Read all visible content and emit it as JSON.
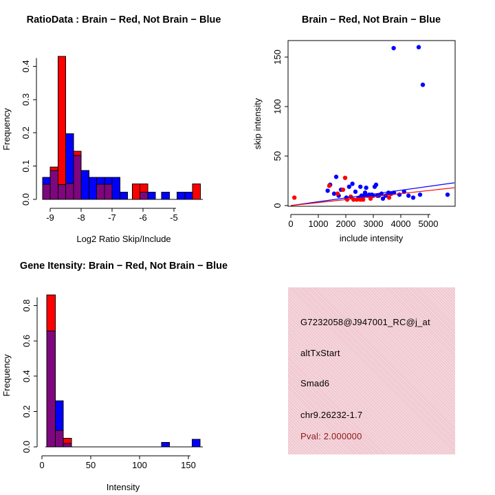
{
  "window": {
    "background": "#ffffff"
  },
  "colors": {
    "red": "#ff0000",
    "blue": "#0000ff",
    "overlap_purple": "#7e067e",
    "axis_black": "#000000",
    "info_panel_pink": "#f0c6cf",
    "pval_dark_red": "#8b1a1a"
  },
  "chart_data": [
    {
      "id": "ratio-histogram",
      "type": "bar",
      "subtype": "overlaid-histogram",
      "title": "RatioData : Brain − Red, Not Brain − Blue",
      "xlabel": "Log2 Ratio Skip/Include",
      "ylabel": "Frequency",
      "xlim": [
        -9.35,
        -4.1
      ],
      "ylim": [
        0,
        0.43
      ],
      "xticks": [
        -9,
        -8,
        -7,
        -6,
        -5
      ],
      "xtick_labels": [
        "-9",
        "-8",
        "-7",
        "-6",
        "-5"
      ],
      "yticks": [
        0,
        0.1,
        0.2,
        0.3,
        0.4
      ],
      "ytick_labels": [
        "0.0",
        "0.1",
        "0.2",
        "0.3",
        "0.4"
      ],
      "legend_note": "Brain = red, Not Brain = blue, overlap = purple",
      "grid": false,
      "bars": [
        {
          "x": -9.25,
          "w": 0.25,
          "red": 0.045,
          "blue": 0.066
        },
        {
          "x": -9.0,
          "w": 0.25,
          "red": 0.097,
          "blue": 0.087
        },
        {
          "x": -8.75,
          "w": 0.25,
          "red": 0.43,
          "blue": 0.044
        },
        {
          "x": -8.5,
          "w": 0.25,
          "red": 0.048,
          "blue": 0.197
        },
        {
          "x": -8.25,
          "w": 0.25,
          "red": 0.145,
          "blue": 0.132
        },
        {
          "x": -8.0,
          "w": 0.25,
          "red": 0,
          "blue": 0.087
        },
        {
          "x": -7.75,
          "w": 0.25,
          "red": 0,
          "blue": 0.066
        },
        {
          "x": -7.5,
          "w": 0.25,
          "red": 0.045,
          "blue": 0.066
        },
        {
          "x": -7.25,
          "w": 0.25,
          "red": 0.045,
          "blue": 0.066
        },
        {
          "x": -7.0,
          "w": 0.25,
          "red": 0,
          "blue": 0.066
        },
        {
          "x": -6.75,
          "w": 0.25,
          "red": 0,
          "blue": 0.022
        },
        {
          "x": -6.35,
          "w": 0.25,
          "red": 0.047,
          "blue": 0
        },
        {
          "x": -6.1,
          "w": 0.25,
          "red": 0.047,
          "blue": 0.022
        },
        {
          "x": -5.85,
          "w": 0.25,
          "red": 0,
          "blue": 0.022
        },
        {
          "x": -5.4,
          "w": 0.25,
          "red": 0,
          "blue": 0.022
        },
        {
          "x": -4.9,
          "w": 0.25,
          "red": 0,
          "blue": 0.022
        },
        {
          "x": -4.65,
          "w": 0.25,
          "red": 0,
          "blue": 0.022
        },
        {
          "x": -4.4,
          "w": 0.25,
          "red": 0.047,
          "blue": 0
        }
      ]
    },
    {
      "id": "intensity-scatter",
      "type": "scatter",
      "title": "Brain − Red, Not Brain − Blue",
      "xlabel": "include intensity",
      "ylabel": "skip intensity",
      "xlim": [
        -150,
        5975
      ],
      "ylim": [
        -4,
        167
      ],
      "xticks": [
        0,
        1000,
        2000,
        3000,
        4000,
        5000
      ],
      "xtick_labels": [
        "0",
        "1000",
        "2000",
        "3000",
        "4000",
        "5000"
      ],
      "yticks": [
        0,
        50,
        100,
        150
      ],
      "ytick_labels": [
        "0",
        "50",
        "100",
        "150"
      ],
      "grid": false,
      "box": true,
      "blue_points": [
        [
          3740,
          159
        ],
        [
          4650,
          160
        ],
        [
          4800,
          122
        ],
        [
          1650,
          29
        ],
        [
          1430,
          21
        ],
        [
          1340,
          15
        ],
        [
          1575,
          12
        ],
        [
          1740,
          10
        ],
        [
          1825,
          16
        ],
        [
          2020,
          8
        ],
        [
          2120,
          19
        ],
        [
          2240,
          22
        ],
        [
          2350,
          14
        ],
        [
          2450,
          7
        ],
        [
          2500,
          8
        ],
        [
          2530,
          19
        ],
        [
          2570,
          10
        ],
        [
          2600,
          9
        ],
        [
          2650,
          10
        ],
        [
          2700,
          13
        ],
        [
          2740,
          18
        ],
        [
          2800,
          10
        ],
        [
          2850,
          11
        ],
        [
          2900,
          10
        ],
        [
          2950,
          11
        ],
        [
          3000,
          10
        ],
        [
          3050,
          19
        ],
        [
          3100,
          21
        ],
        [
          3150,
          10
        ],
        [
          3200,
          10
        ],
        [
          3300,
          12
        ],
        [
          3350,
          7
        ],
        [
          3450,
          10
        ],
        [
          3550,
          13
        ],
        [
          3650,
          12
        ],
        [
          3750,
          13
        ],
        [
          3950,
          11
        ],
        [
          4120,
          14
        ],
        [
          4280,
          10
        ],
        [
          4450,
          8
        ],
        [
          4700,
          11
        ],
        [
          5700,
          11
        ]
      ],
      "red_points": [
        [
          130,
          8
        ],
        [
          1400,
          20
        ],
        [
          1975,
          28
        ],
        [
          1700,
          12
        ],
        [
          1900,
          16
        ],
        [
          2050,
          6
        ],
        [
          2180,
          9
        ],
        [
          2280,
          6
        ],
        [
          2400,
          6
        ],
        [
          2530,
          6
        ],
        [
          2630,
          6
        ],
        [
          2900,
          7
        ],
        [
          3575,
          8
        ]
      ],
      "fit_lines": [
        {
          "color_key": "blue",
          "x1": 0,
          "y1": 0,
          "x2": 5950,
          "y2": 23
        },
        {
          "color_key": "red",
          "x1": 0,
          "y1": 0,
          "x2": 5950,
          "y2": 18
        }
      ]
    },
    {
      "id": "gene-intensity-histogram",
      "type": "bar",
      "subtype": "overlaid-histogram",
      "title": "Gene Itensity: Brain − Red, Not Brain − Blue",
      "xlabel": "Intensity",
      "ylabel": "Frequency",
      "xlim": [
        0,
        165
      ],
      "ylim": [
        0,
        0.87
      ],
      "xticks": [
        0,
        50,
        100,
        150
      ],
      "xtick_labels": [
        "0",
        "50",
        "100",
        "150"
      ],
      "yticks": [
        0,
        0.2,
        0.4,
        0.6,
        0.8
      ],
      "ytick_labels": [
        "0.0",
        "0.2",
        "0.4",
        "0.6",
        "0.8"
      ],
      "legend_note": "Brain = red, Not Brain = blue, overlap = purple",
      "grid": false,
      "bars": [
        {
          "x": 5,
          "w": 8.8,
          "red": 0.86,
          "blue": 0.655
        },
        {
          "x": 13.8,
          "w": 8.2,
          "red": 0.093,
          "blue": 0.26
        },
        {
          "x": 22,
          "w": 8.3,
          "red": 0.048,
          "blue": 0.02
        },
        {
          "x": 122.5,
          "w": 8,
          "red": 0,
          "blue": 0.025
        },
        {
          "x": 154,
          "w": 8,
          "red": 0,
          "blue": 0.043
        }
      ]
    }
  ],
  "info_panel": {
    "probe_id": "G7232058@J947001_RC@j_at",
    "event_type": "altTxStart",
    "gene": "Smad6",
    "locus": "chr9.26232-1.7",
    "pval": "Pval: 2.000000"
  }
}
